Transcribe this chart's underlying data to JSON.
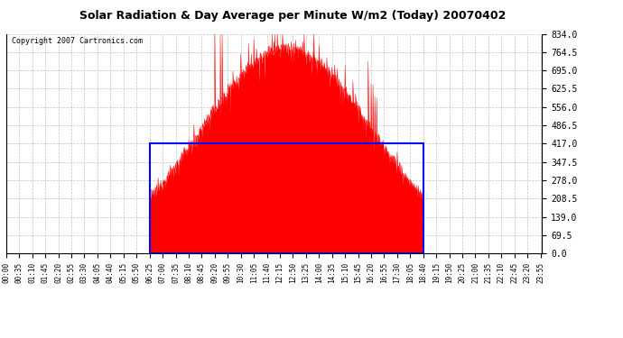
{
  "title": "Solar Radiation & Day Average per Minute W/m2 (Today) 20070402",
  "copyright": "Copyright 2007 Cartronics.com",
  "yticks": [
    0.0,
    69.5,
    139.0,
    208.5,
    278.0,
    347.5,
    417.0,
    486.5,
    556.0,
    625.5,
    695.0,
    764.5,
    834.0
  ],
  "ymax": 834.0,
  "ymin": 0.0,
  "bg_color": "#ffffff",
  "plot_bg_color": "#ffffff",
  "fill_color": "#ff0000",
  "avg_box_color": "#0000ff",
  "grid_color": "#bbbbbb",
  "avg_value": 417.0,
  "sunrise_minute": 385,
  "sunset_minute": 1120,
  "tick_interval": 35,
  "total_minutes": 1440
}
